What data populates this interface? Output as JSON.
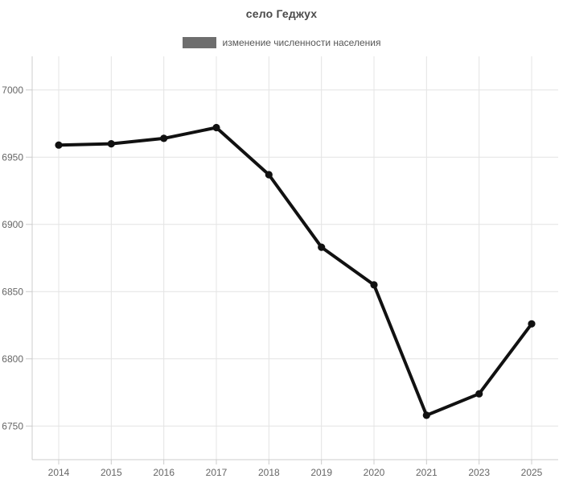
{
  "title": "село Геджух",
  "legend": {
    "label": "изменение численности населения",
    "swatch_color": "#6e6e6e",
    "position": "top"
  },
  "colors": {
    "background": "#ffffff",
    "title": "#4a4a4a",
    "legend_text": "#565656",
    "tick_label": "#666666",
    "grid": "#e4e4e4",
    "axis": "#cccccc",
    "line": "#111111"
  },
  "chart_data": {
    "type": "line",
    "title": "село Геджух",
    "categories": [
      "2014",
      "2015",
      "2016",
      "2017",
      "2018",
      "2019",
      "2020",
      "2021",
      "2023",
      "2025"
    ],
    "series": [
      {
        "name": "изменение численности населения",
        "values": [
          6959,
          6960,
          6964,
          6972,
          6937,
          6883,
          6855,
          6758,
          6774,
          6826
        ]
      }
    ],
    "xlabel": "",
    "ylabel": "",
    "ylim": [
      6725,
      7025
    ],
    "yticks": [
      6750,
      6800,
      6850,
      6900,
      6950,
      7000
    ],
    "grid": true,
    "legend_position": "top",
    "marker": "circle",
    "line_width": 4,
    "marker_radius": 4.6
  }
}
